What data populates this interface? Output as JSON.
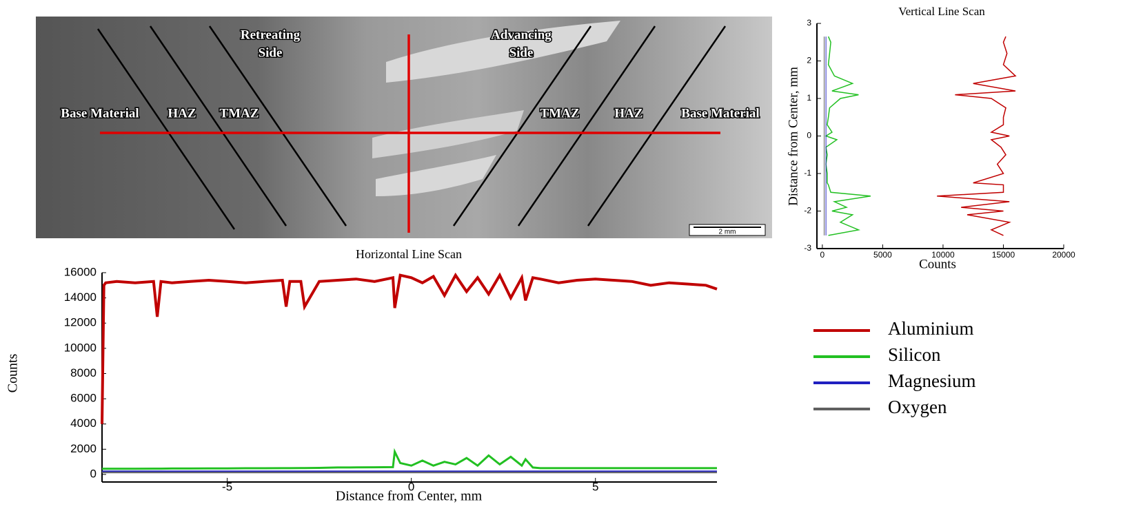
{
  "micrograph": {
    "labels": [
      "Base Material",
      "HAZ",
      "TMAZ",
      "Retreating",
      "Side",
      "Advancing",
      "Side",
      "TMAZ",
      "HAZ",
      "Base Material"
    ],
    "scale_bar": "2 mm"
  },
  "chart_data": [
    {
      "type": "line",
      "title": "Horizontal Line Scan",
      "x_label": "Distance from Center, mm",
      "y_label": "Counts",
      "x": [
        -8.4,
        -8.35,
        -8.3,
        -8,
        -7.5,
        -7,
        -6.9,
        -6.8,
        -6.5,
        -6,
        -5.5,
        -5,
        -4.5,
        -4,
        -3.5,
        -3.4,
        -3.3,
        -3.0,
        -2.9,
        -2.5,
        -2,
        -1.5,
        -1,
        -0.5,
        -0.45,
        -0.3,
        0,
        0.3,
        0.6,
        0.9,
        1.2,
        1.5,
        1.8,
        2.1,
        2.4,
        2.7,
        3.0,
        3.1,
        3.3,
        3.5,
        4,
        4.5,
        5,
        5.5,
        6,
        6.5,
        7,
        7.5,
        8,
        8.3
      ],
      "series": [
        {
          "name": "Aluminium",
          "color": "#c00000",
          "width": 4,
          "values": [
            4000,
            15000,
            15200,
            15300,
            15200,
            15300,
            12500,
            15300,
            15200,
            15300,
            15400,
            15300,
            15200,
            15300,
            15400,
            13300,
            15300,
            15300,
            13300,
            15300,
            15400,
            15500,
            15300,
            15600,
            13200,
            15800,
            15600,
            15200,
            15700,
            14200,
            15800,
            14500,
            15600,
            14300,
            15800,
            14000,
            15600,
            13800,
            15600,
            15500,
            15200,
            15400,
            15500,
            15400,
            15300,
            15000,
            15200,
            15100,
            15000,
            14700
          ]
        },
        {
          "name": "Silicon",
          "color": "#22c022",
          "width": 3,
          "values": [
            450,
            450,
            450,
            450,
            450,
            460,
            460,
            460,
            470,
            470,
            480,
            480,
            490,
            490,
            500,
            500,
            500,
            510,
            510,
            520,
            550,
            560,
            570,
            580,
            1800,
            900,
            700,
            1100,
            700,
            1000,
            800,
            1300,
            700,
            1500,
            800,
            1400,
            700,
            1200,
            550,
            500,
            500,
            500,
            500,
            500,
            500,
            500,
            500,
            500,
            500,
            500
          ]
        },
        {
          "name": "Magnesium",
          "color": "#2020c0",
          "width": 2,
          "values": [
            250,
            250,
            250,
            250,
            250,
            250,
            250,
            250,
            250,
            250,
            250,
            250,
            250,
            250,
            250,
            250,
            250,
            250,
            250,
            250,
            250,
            250,
            250,
            250,
            250,
            250,
            250,
            250,
            250,
            250,
            250,
            250,
            250,
            250,
            250,
            250,
            250,
            250,
            250,
            250,
            250,
            250,
            250,
            250,
            250,
            250,
            250,
            250,
            250,
            250
          ]
        },
        {
          "name": "Oxygen",
          "color": "#606060",
          "width": 2,
          "values": [
            150,
            150,
            150,
            150,
            150,
            150,
            150,
            150,
            150,
            150,
            150,
            150,
            150,
            150,
            150,
            150,
            150,
            150,
            150,
            150,
            150,
            150,
            150,
            150,
            150,
            150,
            150,
            150,
            150,
            150,
            150,
            150,
            150,
            150,
            150,
            150,
            150,
            150,
            150,
            150,
            150,
            150,
            150,
            150,
            150,
            150,
            150,
            150,
            150,
            150
          ]
        }
      ],
      "xlim": [
        -8.4,
        8.3
      ],
      "xticks": [
        -5,
        0,
        5
      ],
      "ylim": [
        -600,
        16000
      ],
      "yticks": [
        0,
        2000,
        4000,
        6000,
        8000,
        10000,
        12000,
        14000,
        16000
      ]
    },
    {
      "type": "line",
      "horizontal": true,
      "title": "Vertical Line Scan",
      "x_label": "Counts",
      "y_label": "Distance from Center, mm",
      "y": [
        -2.65,
        -2.5,
        -2.3,
        -2.1,
        -2.0,
        -1.9,
        -1.75,
        -1.6,
        -1.5,
        -1.3,
        -1.25,
        -1.0,
        -0.75,
        -0.5,
        -0.3,
        -0.1,
        0,
        0.1,
        0.3,
        0.5,
        0.75,
        1.0,
        1.1,
        1.2,
        1.4,
        1.6,
        1.9,
        2.2,
        2.5,
        2.65
      ],
      "series": [
        {
          "name": "Aluminium",
          "color": "#c00000",
          "width": 1.5,
          "values": [
            15000,
            14000,
            15500,
            12000,
            15000,
            11500,
            15500,
            9500,
            15000,
            15000,
            12500,
            15000,
            14500,
            15200,
            14800,
            14000,
            15500,
            14000,
            15000,
            15000,
            15200,
            14000,
            11000,
            16000,
            12500,
            16000,
            15000,
            15300,
            15000,
            15200
          ]
        },
        {
          "name": "Silicon",
          "color": "#22c022",
          "width": 1.5,
          "values": [
            500,
            3000,
            1500,
            2500,
            800,
            2000,
            1000,
            4000,
            700,
            500,
            400,
            400,
            300,
            400,
            300,
            1200,
            300,
            800,
            400,
            500,
            600,
            1500,
            3000,
            800,
            2500,
            1000,
            500,
            600,
            700,
            500
          ]
        },
        {
          "name": "Magnesium",
          "color": "#2020c0",
          "width": 1,
          "values": [
            300,
            300,
            300,
            300,
            300,
            300,
            300,
            300,
            300,
            300,
            300,
            300,
            300,
            300,
            300,
            300,
            300,
            300,
            300,
            300,
            300,
            300,
            300,
            300,
            300,
            300,
            300,
            300,
            300,
            300
          ]
        },
        {
          "name": "Oxygen",
          "color": "#606060",
          "width": 1,
          "values": [
            150,
            150,
            150,
            150,
            150,
            150,
            150,
            150,
            150,
            150,
            150,
            150,
            150,
            150,
            150,
            150,
            150,
            150,
            150,
            150,
            150,
            150,
            150,
            150,
            150,
            150,
            150,
            150,
            150,
            150
          ]
        }
      ],
      "xlim": [
        -450,
        20000
      ],
      "xticks": [
        0,
        5000,
        10000,
        15000,
        20000
      ],
      "ylim": [
        -3,
        3
      ],
      "yticks": [
        -3,
        -2,
        -1,
        0,
        1,
        2,
        3
      ]
    }
  ]
}
